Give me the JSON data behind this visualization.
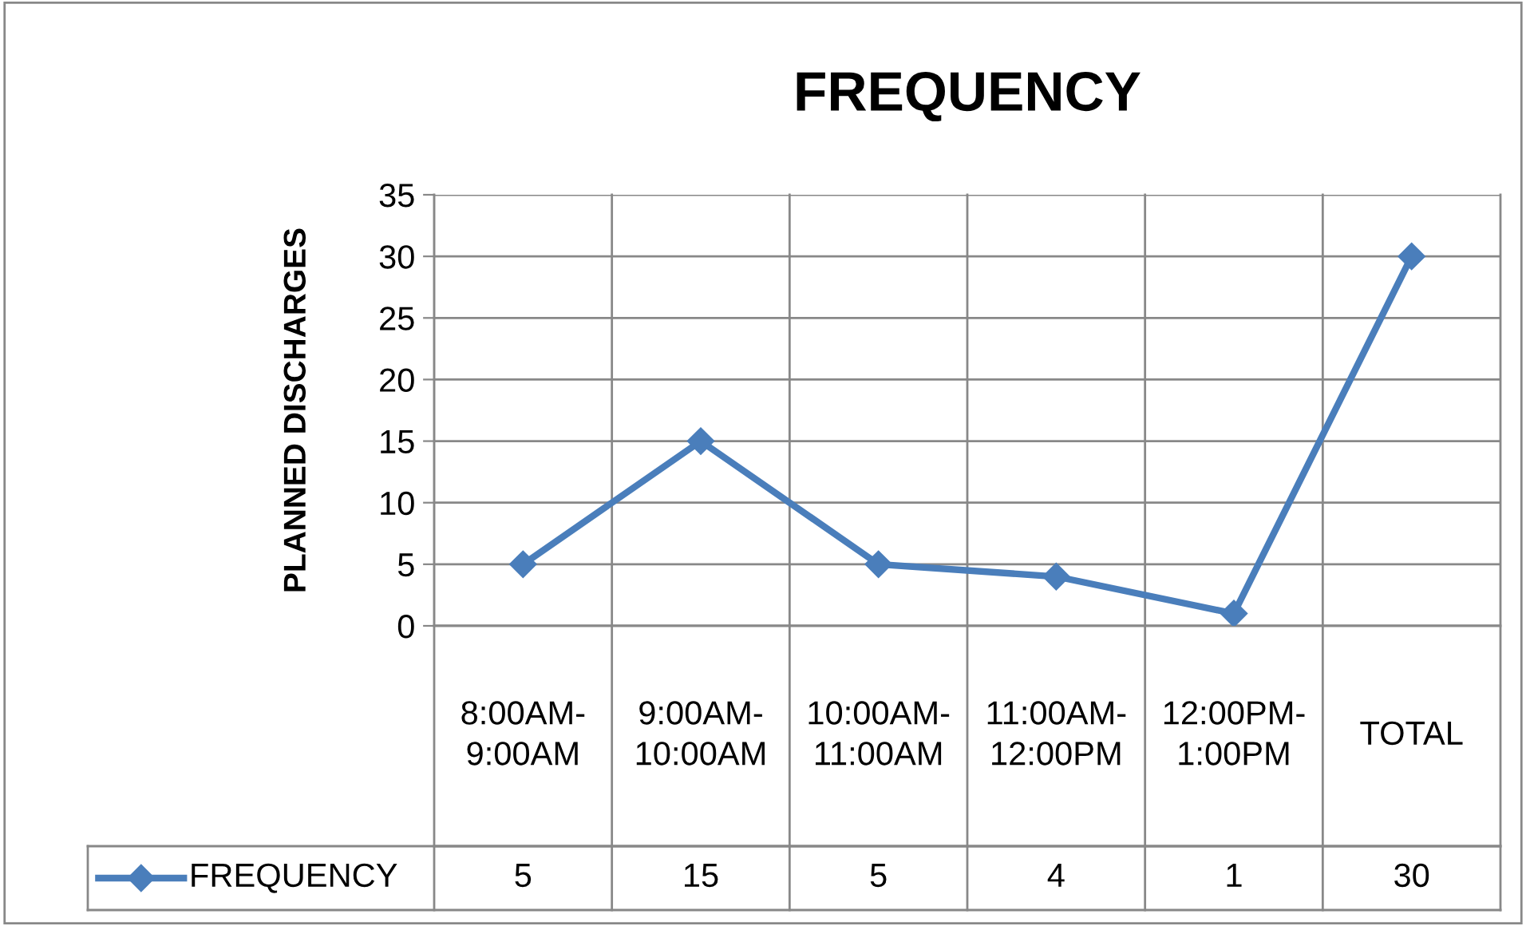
{
  "chart_data": {
    "type": "line",
    "title": "FREQUENCY",
    "ylabel": "PLANNED DISCHARGES",
    "categories": [
      "8:00AM-9:00AM",
      "9:00AM-10:00AM",
      "10:00AM-11:00AM",
      "11:00AM-12:00PM",
      "12:00PM-1:00PM",
      "TOTAL"
    ],
    "series": [
      {
        "name": "FREQUENCY",
        "color": "#4a7ebb",
        "values": [
          5,
          15,
          5,
          4,
          1,
          30
        ]
      }
    ],
    "ylim": [
      0,
      35
    ],
    "yticks": [
      0,
      5,
      10,
      15,
      20,
      25,
      30,
      35
    ],
    "grid": "y",
    "legend": "bottom",
    "marker": "diamond",
    "line_style": "solid",
    "data_labels": true
  }
}
